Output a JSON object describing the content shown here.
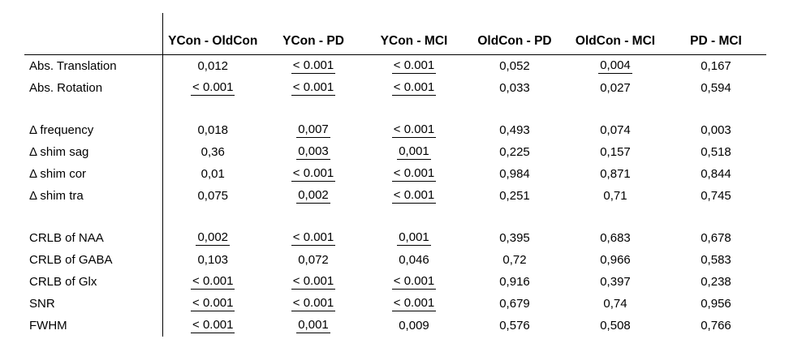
{
  "table": {
    "colors": {
      "text": "#000000",
      "background": "#ffffff",
      "rule": "#000000"
    },
    "columns": [
      "YCon - OldCon",
      "YCon - PD",
      "YCon - MCI",
      "OldCon - PD",
      "OldCon - MCI",
      "PD - MCI"
    ],
    "rows": [
      {
        "label": "Abs. Translation",
        "cells": [
          {
            "text": "0,012",
            "sig": false
          },
          {
            "text": "< 0.001",
            "sig": true
          },
          {
            "text": "< 0.001",
            "sig": true
          },
          {
            "text": "0,052",
            "sig": false
          },
          {
            "text": "0,004",
            "sig": true
          },
          {
            "text": "0,167",
            "sig": false
          }
        ]
      },
      {
        "label": "Abs. Rotation",
        "cells": [
          {
            "text": "< 0.001",
            "sig": true
          },
          {
            "text": "< 0.001",
            "sig": true
          },
          {
            "text": "< 0.001",
            "sig": true
          },
          {
            "text": "0,033",
            "sig": false
          },
          {
            "text": "0,027",
            "sig": false
          },
          {
            "text": "0,594",
            "sig": false
          }
        ]
      },
      {
        "label": "Δ frequency",
        "cells": [
          {
            "text": "0,018",
            "sig": false
          },
          {
            "text": "0,007",
            "sig": true
          },
          {
            "text": "< 0.001",
            "sig": true
          },
          {
            "text": "0,493",
            "sig": false
          },
          {
            "text": "0,074",
            "sig": false
          },
          {
            "text": "0,003",
            "sig": false
          }
        ]
      },
      {
        "label": "Δ shim sag",
        "cells": [
          {
            "text": "0,36",
            "sig": false
          },
          {
            "text": "0,003",
            "sig": true
          },
          {
            "text": "0,001",
            "sig": true
          },
          {
            "text": "0,225",
            "sig": false
          },
          {
            "text": "0,157",
            "sig": false
          },
          {
            "text": "0,518",
            "sig": false
          }
        ]
      },
      {
        "label": "Δ shim cor",
        "cells": [
          {
            "text": "0,01",
            "sig": false
          },
          {
            "text": "< 0.001",
            "sig": true
          },
          {
            "text": "< 0.001",
            "sig": true
          },
          {
            "text": "0,984",
            "sig": false
          },
          {
            "text": "0,871",
            "sig": false
          },
          {
            "text": "0,844",
            "sig": false
          }
        ]
      },
      {
        "label": "Δ shim tra",
        "cells": [
          {
            "text": "0,075",
            "sig": false
          },
          {
            "text": "0,002",
            "sig": true
          },
          {
            "text": "< 0.001",
            "sig": true
          },
          {
            "text": "0,251",
            "sig": false
          },
          {
            "text": "0,71",
            "sig": false
          },
          {
            "text": "0,745",
            "sig": false
          }
        ]
      },
      {
        "label": "CRLB of NAA",
        "cells": [
          {
            "text": "0,002",
            "sig": true
          },
          {
            "text": "< 0.001",
            "sig": true
          },
          {
            "text": "0,001",
            "sig": true
          },
          {
            "text": "0,395",
            "sig": false
          },
          {
            "text": "0,683",
            "sig": false
          },
          {
            "text": "0,678",
            "sig": false
          }
        ]
      },
      {
        "label": "CRLB of GABA",
        "cells": [
          {
            "text": "0,103",
            "sig": false
          },
          {
            "text": "0,072",
            "sig": false
          },
          {
            "text": "0,046",
            "sig": false
          },
          {
            "text": "0,72",
            "sig": false
          },
          {
            "text": "0,966",
            "sig": false
          },
          {
            "text": "0,583",
            "sig": false
          }
        ]
      },
      {
        "label": "CRLB of Glx",
        "cells": [
          {
            "text": "< 0.001",
            "sig": true
          },
          {
            "text": "< 0.001",
            "sig": true
          },
          {
            "text": "< 0.001",
            "sig": true
          },
          {
            "text": "0,916",
            "sig": false
          },
          {
            "text": "0,397",
            "sig": false
          },
          {
            "text": "0,238",
            "sig": false
          }
        ]
      },
      {
        "label": "SNR",
        "cells": [
          {
            "text": "< 0.001",
            "sig": true
          },
          {
            "text": "< 0.001",
            "sig": true
          },
          {
            "text": "< 0.001",
            "sig": true
          },
          {
            "text": "0,679",
            "sig": false
          },
          {
            "text": "0,74",
            "sig": false
          },
          {
            "text": "0,956",
            "sig": false
          }
        ]
      },
      {
        "label": "FWHM",
        "cells": [
          {
            "text": "< 0.001",
            "sig": true
          },
          {
            "text": "0,001",
            "sig": true
          },
          {
            "text": "0,009",
            "sig": false
          },
          {
            "text": "0,576",
            "sig": false
          },
          {
            "text": "0,508",
            "sig": false
          },
          {
            "text": "0,766",
            "sig": false
          }
        ]
      }
    ]
  }
}
